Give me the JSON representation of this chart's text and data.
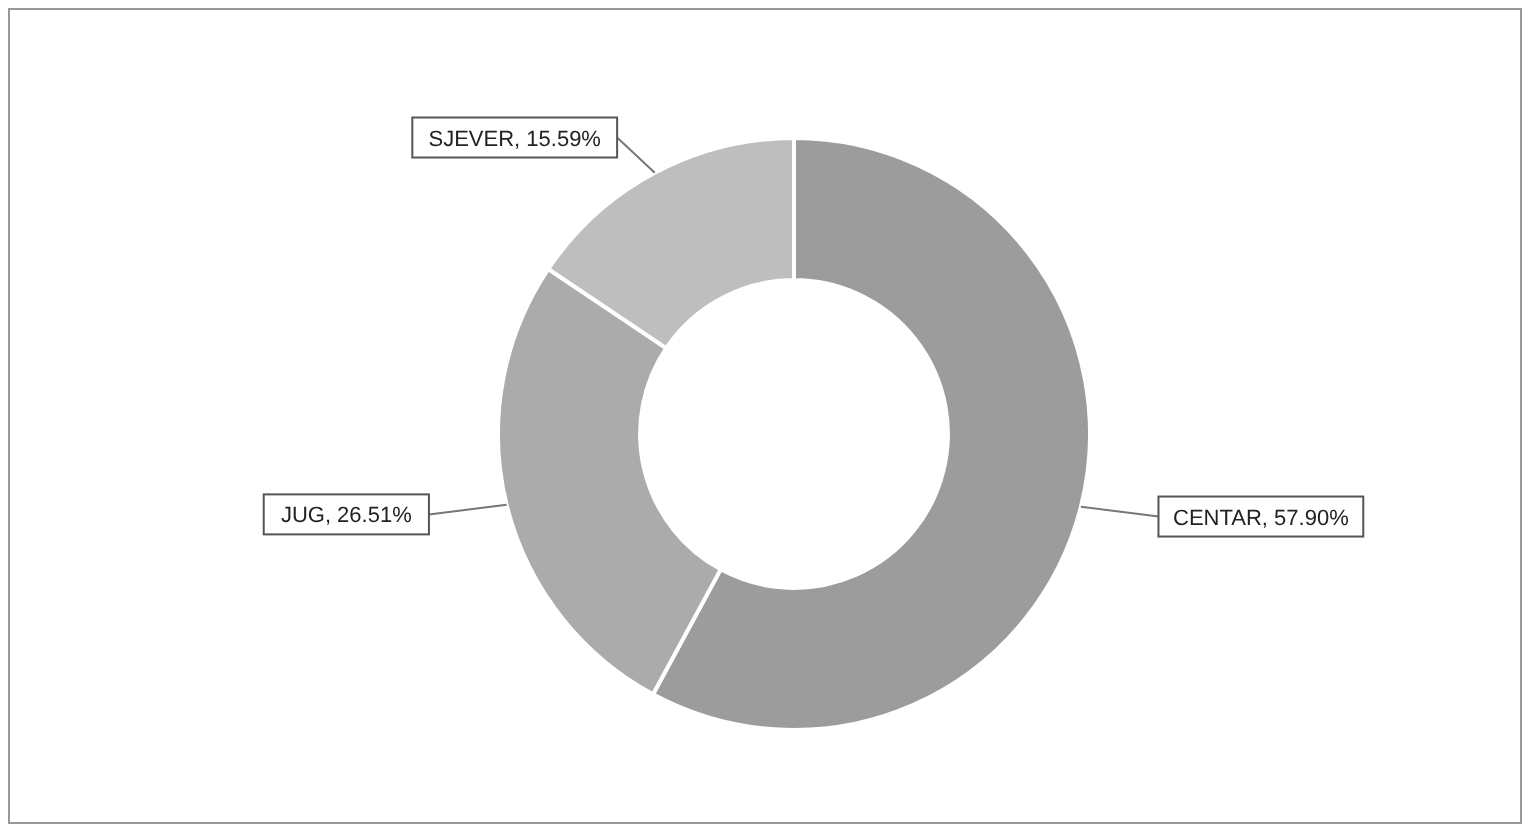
{
  "chart_data": {
    "type": "donut",
    "categories": [
      "CENTAR",
      "JUG",
      "SJEVER"
    ],
    "values": [
      57.9,
      26.51,
      15.59
    ],
    "value_labels": [
      "57.90%",
      "26.51%",
      "15.59%"
    ],
    "colors": [
      "#9c9c9c",
      "#ababab",
      "#bebebe"
    ],
    "legend": false
  }
}
